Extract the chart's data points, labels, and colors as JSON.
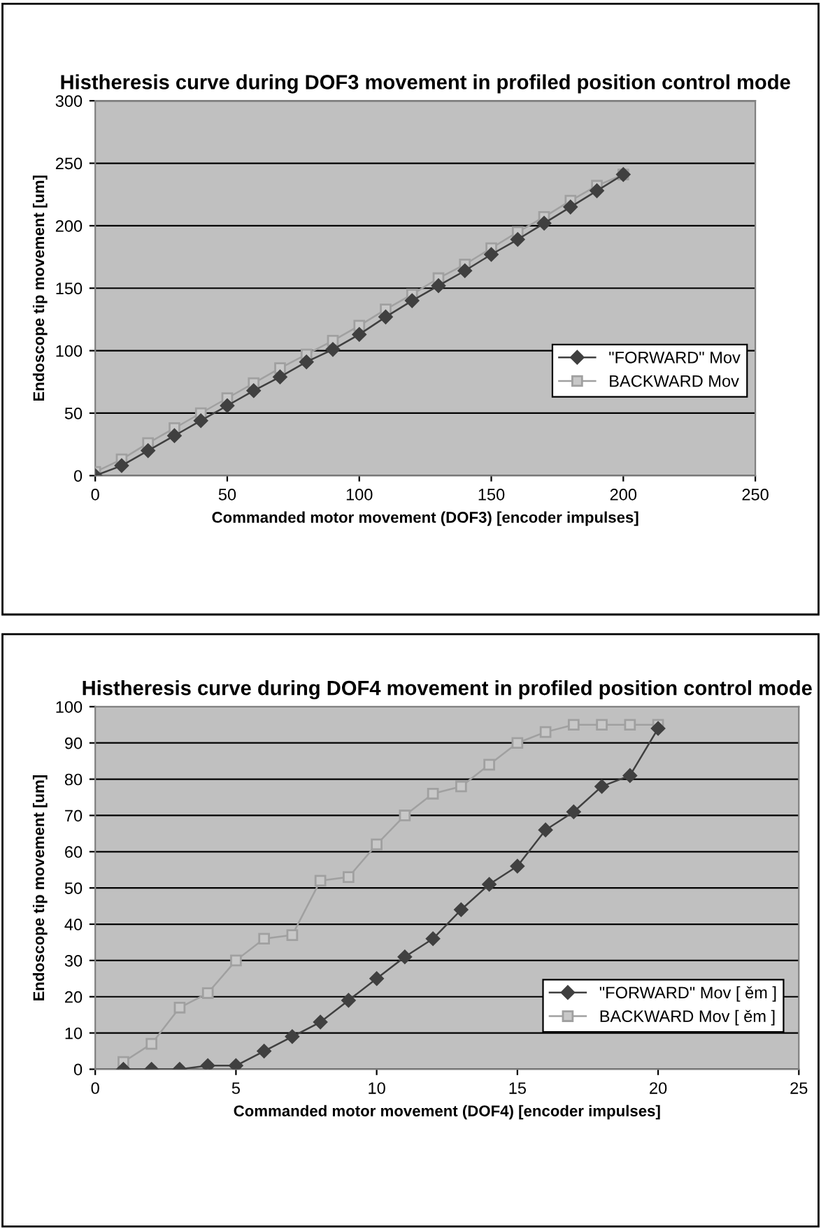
{
  "chart_data": [
    {
      "type": "line",
      "title": "Histheresis curve during DOF3 movement in profiled position control mode",
      "xlabel": "Commanded motor movement (DOF3) [encoder impulses]",
      "ylabel": "Endoscope tip movement [um]",
      "series": [
        {
          "name": "\"FORWARD\" Mov",
          "color": "#404040",
          "marker": "diamond",
          "x": [
            0,
            10,
            20,
            30,
            40,
            50,
            60,
            70,
            80,
            90,
            100,
            110,
            120,
            130,
            140,
            150,
            160,
            170,
            180,
            190,
            200
          ],
          "values": [
            0,
            8,
            20,
            32,
            44,
            56,
            68,
            79,
            91,
            101,
            113,
            127,
            140,
            152,
            164,
            177,
            189,
            202,
            215,
            228,
            241
          ]
        },
        {
          "name": "BACKWARD Mov",
          "color": "#a0a0a0",
          "marker": "square",
          "x": [
            0,
            10,
            20,
            30,
            40,
            50,
            60,
            70,
            80,
            90,
            100,
            110,
            120,
            130,
            140,
            150,
            160,
            170,
            180,
            190,
            200
          ],
          "values": [
            3,
            13,
            26,
            38,
            50,
            62,
            74,
            86,
            97,
            108,
            120,
            133,
            145,
            158,
            169,
            182,
            195,
            207,
            220,
            232,
            241
          ]
        }
      ],
      "xlim": [
        0,
        250
      ],
      "xticks": [
        0,
        50,
        100,
        150,
        200,
        250
      ],
      "ylim": [
        0,
        300
      ],
      "yticks": [
        0,
        50,
        100,
        150,
        200,
        250,
        300
      ],
      "grid": "y",
      "legend": "right"
    },
    {
      "type": "line",
      "title": "Histheresis curve during DOF4 movement in profiled position control mode",
      "xlabel": "Commanded motor movement (DOF4) [encoder impulses]",
      "ylabel": "Endoscope tip movement [um]",
      "series": [
        {
          "name": "\"FORWARD\" Mov [ ěm ]",
          "color": "#404040",
          "marker": "diamond",
          "x": [
            1,
            2,
            3,
            4,
            5,
            6,
            7,
            8,
            9,
            10,
            11,
            12,
            13,
            14,
            15,
            16,
            17,
            18,
            19,
            20
          ],
          "values": [
            0,
            0,
            0,
            1,
            1,
            5,
            9,
            13,
            19,
            25,
            31,
            36,
            44,
            51,
            56,
            66,
            71,
            78,
            81,
            94
          ]
        },
        {
          "name": "BACKWARD Mov [ ěm ]",
          "color": "#a0a0a0",
          "marker": "square",
          "x": [
            1,
            2,
            3,
            4,
            5,
            6,
            7,
            8,
            9,
            10,
            11,
            12,
            13,
            14,
            15,
            16,
            17,
            18,
            19,
            20
          ],
          "values": [
            2,
            7,
            17,
            21,
            30,
            36,
            37,
            52,
            53,
            62,
            70,
            76,
            78,
            84,
            90,
            93,
            95,
            95,
            95,
            95
          ]
        }
      ],
      "xlim": [
        0,
        25
      ],
      "xticks": [
        0,
        5,
        10,
        15,
        20,
        25
      ],
      "ylim": [
        0,
        100
      ],
      "yticks": [
        0,
        10,
        20,
        30,
        40,
        50,
        60,
        70,
        80,
        90,
        100
      ],
      "grid": "y",
      "legend": "bottom right"
    }
  ]
}
